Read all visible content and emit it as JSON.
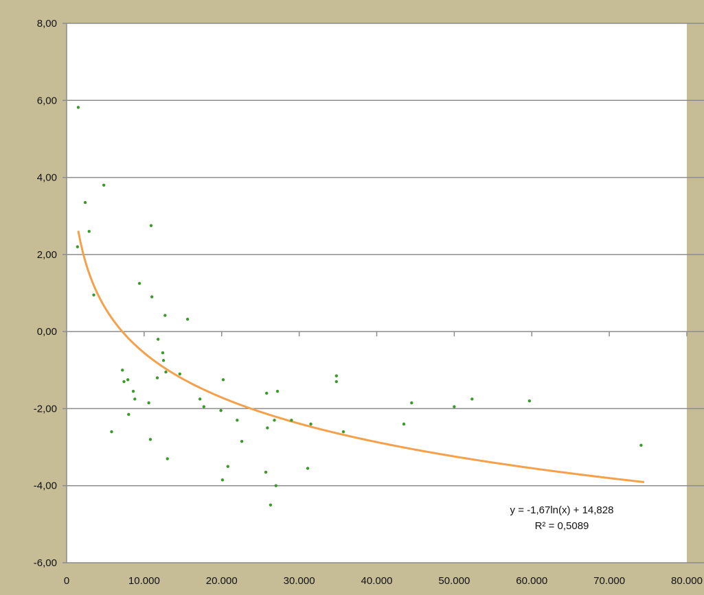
{
  "chart_data": {
    "type": "scatter",
    "title": "",
    "xlabel": "",
    "ylabel": "",
    "xlim": [
      0,
      80000
    ],
    "ylim": [
      -6,
      8
    ],
    "x_ticks": [
      "0",
      "10.000",
      "20.000",
      "30.000",
      "40.000",
      "50.000",
      "60.000",
      "70.000",
      "80.000"
    ],
    "y_ticks": [
      "8,00",
      "6,00",
      "4,00",
      "2,00",
      "0,00",
      "-2,00",
      "-4,00",
      "-6,00"
    ],
    "grid": "horizontal",
    "colors": {
      "points": "#3a9a2a",
      "trendline": "#f5a04a",
      "grid": "#8c8c8c",
      "plot_bg": "#ffffff",
      "frame_bg": "#c6bd96"
    },
    "series": [
      {
        "points": [
          [
            1500,
            5.82
          ],
          [
            1400,
            2.2
          ],
          [
            2400,
            3.35
          ],
          [
            2900,
            2.6
          ],
          [
            3500,
            0.95
          ],
          [
            4800,
            3.8
          ],
          [
            5800,
            -2.6
          ],
          [
            7200,
            -1.0
          ],
          [
            7400,
            -1.3
          ],
          [
            7900,
            -1.25
          ],
          [
            8000,
            -2.15
          ],
          [
            8600,
            -1.55
          ],
          [
            8800,
            -1.75
          ],
          [
            9400,
            1.25
          ],
          [
            10600,
            -1.85
          ],
          [
            10800,
            -2.8
          ],
          [
            10900,
            2.75
          ],
          [
            11000,
            0.9
          ],
          [
            11700,
            -1.2
          ],
          [
            11800,
            -0.2
          ],
          [
            12400,
            -0.55
          ],
          [
            12500,
            -0.75
          ],
          [
            12700,
            0.42
          ],
          [
            12800,
            -1.05
          ],
          [
            13000,
            -3.3
          ],
          [
            14600,
            -1.1
          ],
          [
            15600,
            0.32
          ],
          [
            17200,
            -1.75
          ],
          [
            17700,
            -1.95
          ],
          [
            19900,
            -2.05
          ],
          [
            20200,
            -1.25
          ],
          [
            20100,
            -3.85
          ],
          [
            20800,
            -3.5
          ],
          [
            22000,
            -2.3
          ],
          [
            22600,
            -2.85
          ],
          [
            25700,
            -3.65
          ],
          [
            25800,
            -1.6
          ],
          [
            25900,
            -2.5
          ],
          [
            26300,
            -4.5
          ],
          [
            26800,
            -2.3
          ],
          [
            27000,
            -4.0
          ],
          [
            27200,
            -1.55
          ],
          [
            29000,
            -2.3
          ],
          [
            31100,
            -3.55
          ],
          [
            31500,
            -2.4
          ],
          [
            34800,
            -1.15
          ],
          [
            34800,
            -1.3
          ],
          [
            35700,
            -2.6
          ],
          [
            43500,
            -2.4
          ],
          [
            44500,
            -1.85
          ],
          [
            50000,
            -1.95
          ],
          [
            52300,
            -1.75
          ],
          [
            59700,
            -1.8
          ],
          [
            74100,
            -2.95
          ]
        ]
      }
    ],
    "trendline": {
      "type": "logarithmic",
      "a": -1.67,
      "b": 14.828,
      "x_range": [
        1500,
        74500
      ],
      "equation": "y = -1,67ln(x) + 14,828",
      "r2": "R² = 0,5089"
    }
  }
}
